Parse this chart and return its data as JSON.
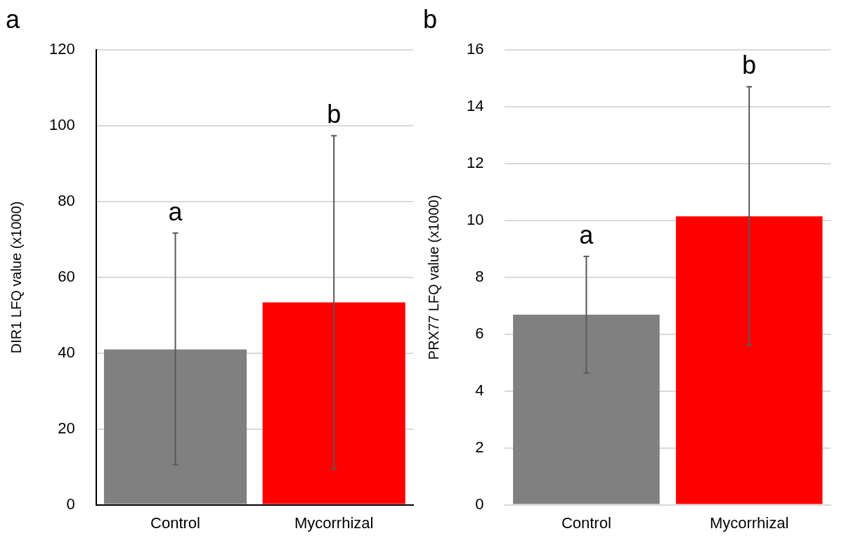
{
  "chart_data": [
    {
      "type": "bar",
      "title": "a",
      "ylabel": "DIR1 LFQ value (x1000)",
      "categories": [
        "Control",
        "Mycorrhizal"
      ],
      "values": [
        41.0,
        53.4
      ],
      "colors": [
        "#808080",
        "#ff0000"
      ],
      "errors": [
        [
          10.6,
          71.7
        ],
        [
          9.5,
          97.4
        ]
      ],
      "ylim": [
        0,
        120
      ],
      "yticks": [
        0,
        20,
        40,
        60,
        80,
        100,
        120
      ],
      "grid": "y",
      "annotations": [
        {
          "text": "a",
          "x": "Control",
          "y": 71.7
        },
        {
          "text": "b",
          "x": "Mycorrhizal",
          "y": 97.4
        }
      ]
    },
    {
      "type": "bar",
      "title": "b",
      "ylabel": "PRX77 LFQ value (x1000)",
      "categories": [
        "Control",
        "Mycorrhizal"
      ],
      "values": [
        6.69,
        10.15
      ],
      "colors": [
        "#808080",
        "#ff0000"
      ],
      "errors": [
        [
          4.63,
          8.74
        ],
        [
          5.61,
          14.71
        ]
      ],
      "ylim": [
        0,
        16
      ],
      "yticks": [
        0,
        2,
        4,
        6,
        8,
        10,
        12,
        14,
        16
      ],
      "grid": "y",
      "annotations": [
        {
          "text": "a",
          "x": "Control",
          "y": 8.74
        },
        {
          "text": "b",
          "x": "Mycorrhizal",
          "y": 14.71
        }
      ]
    }
  ]
}
